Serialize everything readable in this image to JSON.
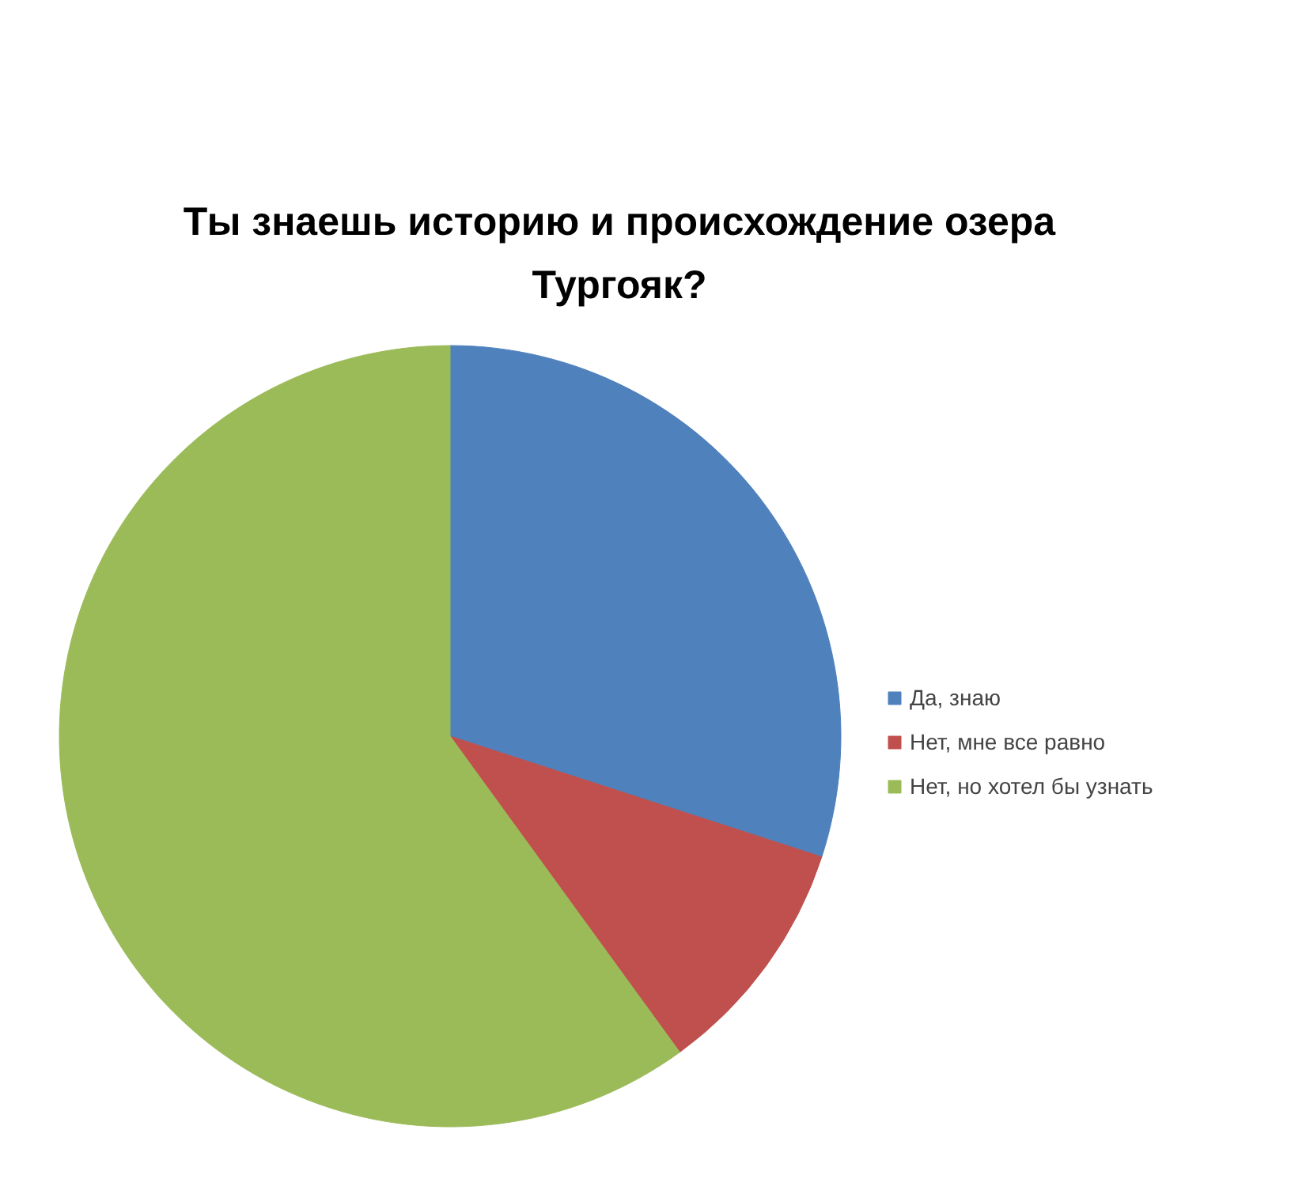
{
  "chart_data": {
    "type": "pie",
    "title": "Ты знаешь историю и происхождение озера Тургояк?",
    "categories": [
      "Да, знаю",
      "Нет, мне все равно",
      "Нет, но хотел бы узнать"
    ],
    "values": [
      30,
      10,
      60
    ],
    "colors": [
      "#4f81bd",
      "#c0504d",
      "#9bbb59"
    ],
    "legend": "right"
  }
}
